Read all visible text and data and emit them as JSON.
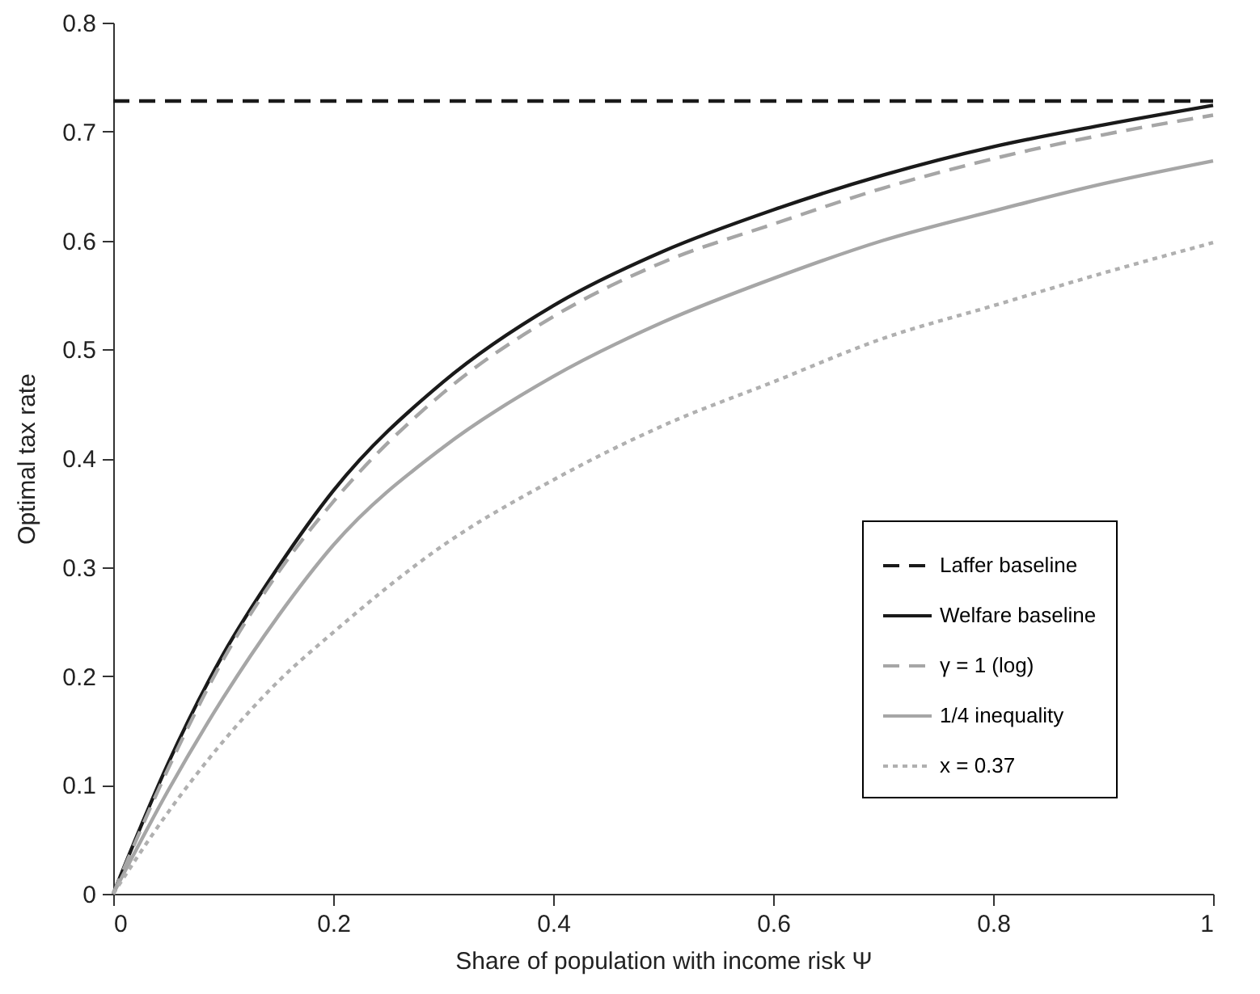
{
  "chart_data": {
    "type": "line",
    "xlabel": "Share of population with income risk Ψ",
    "ylabel": "Optimal tax rate",
    "x": [
      0,
      0.05,
      0.1,
      0.15,
      0.2,
      0.3,
      0.4,
      0.5,
      0.6,
      0.7,
      0.8,
      0.9,
      1
    ],
    "xlim": [
      0,
      1
    ],
    "ylim": [
      0,
      0.8
    ],
    "xticks": [
      0,
      0.2,
      0.4,
      0.6,
      0.8,
      1
    ],
    "yticks": [
      0,
      0.1,
      0.2,
      0.3,
      0.4,
      0.5,
      0.6,
      0.7,
      0.8
    ],
    "grid": false,
    "legend": "bottom right",
    "marker": "none",
    "series": [
      {
        "name": "Laffer baseline",
        "color": "#1a1a1a",
        "line_style": "dashed",
        "x": [
          0,
          1
        ],
        "values": [
          0.728,
          0.728
        ]
      },
      {
        "name": "Welfare baseline",
        "color": "#1a1a1a",
        "line_style": "solid",
        "values": [
          0,
          0.12,
          0.22,
          0.3,
          0.37,
          0.47,
          0.54,
          0.59,
          0.628,
          0.66,
          0.686,
          0.706,
          0.724
        ]
      },
      {
        "name": "γ = 1 (log)",
        "color": "#a6a6a6",
        "line_style": "dashed",
        "values": [
          0,
          0.115,
          0.215,
          0.295,
          0.36,
          0.46,
          0.53,
          0.58,
          0.615,
          0.648,
          0.675,
          0.697,
          0.715
        ]
      },
      {
        "name": "1/4 inequality",
        "color": "#a6a6a6",
        "line_style": "solid",
        "values": [
          0,
          0.095,
          0.18,
          0.255,
          0.32,
          0.41,
          0.475,
          0.525,
          0.565,
          0.6,
          0.627,
          0.652,
          0.673
        ]
      },
      {
        "name": "x = 0.37",
        "color": "#b0b0b0",
        "line_style": "dotted",
        "values": [
          0,
          0.075,
          0.14,
          0.195,
          0.24,
          0.32,
          0.38,
          0.43,
          0.47,
          0.51,
          0.54,
          0.57,
          0.598
        ]
      }
    ]
  }
}
